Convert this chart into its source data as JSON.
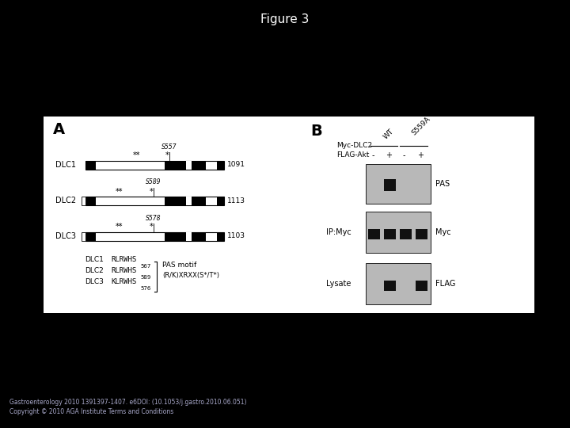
{
  "title": "Figure 3",
  "background_color": "#000000",
  "panel_bg": "#ffffff",
  "title_color": "#ffffff",
  "title_fontsize": 11,
  "footer_line1": "Gastroenterology 2010 1391397-1407. e6DOI: (10.1053/j.gastro.2010.06.051)",
  "footer_line2": "Copyright © 2010 AGA Institute Terms and Conditions",
  "footer_color": "#aaaacc"
}
